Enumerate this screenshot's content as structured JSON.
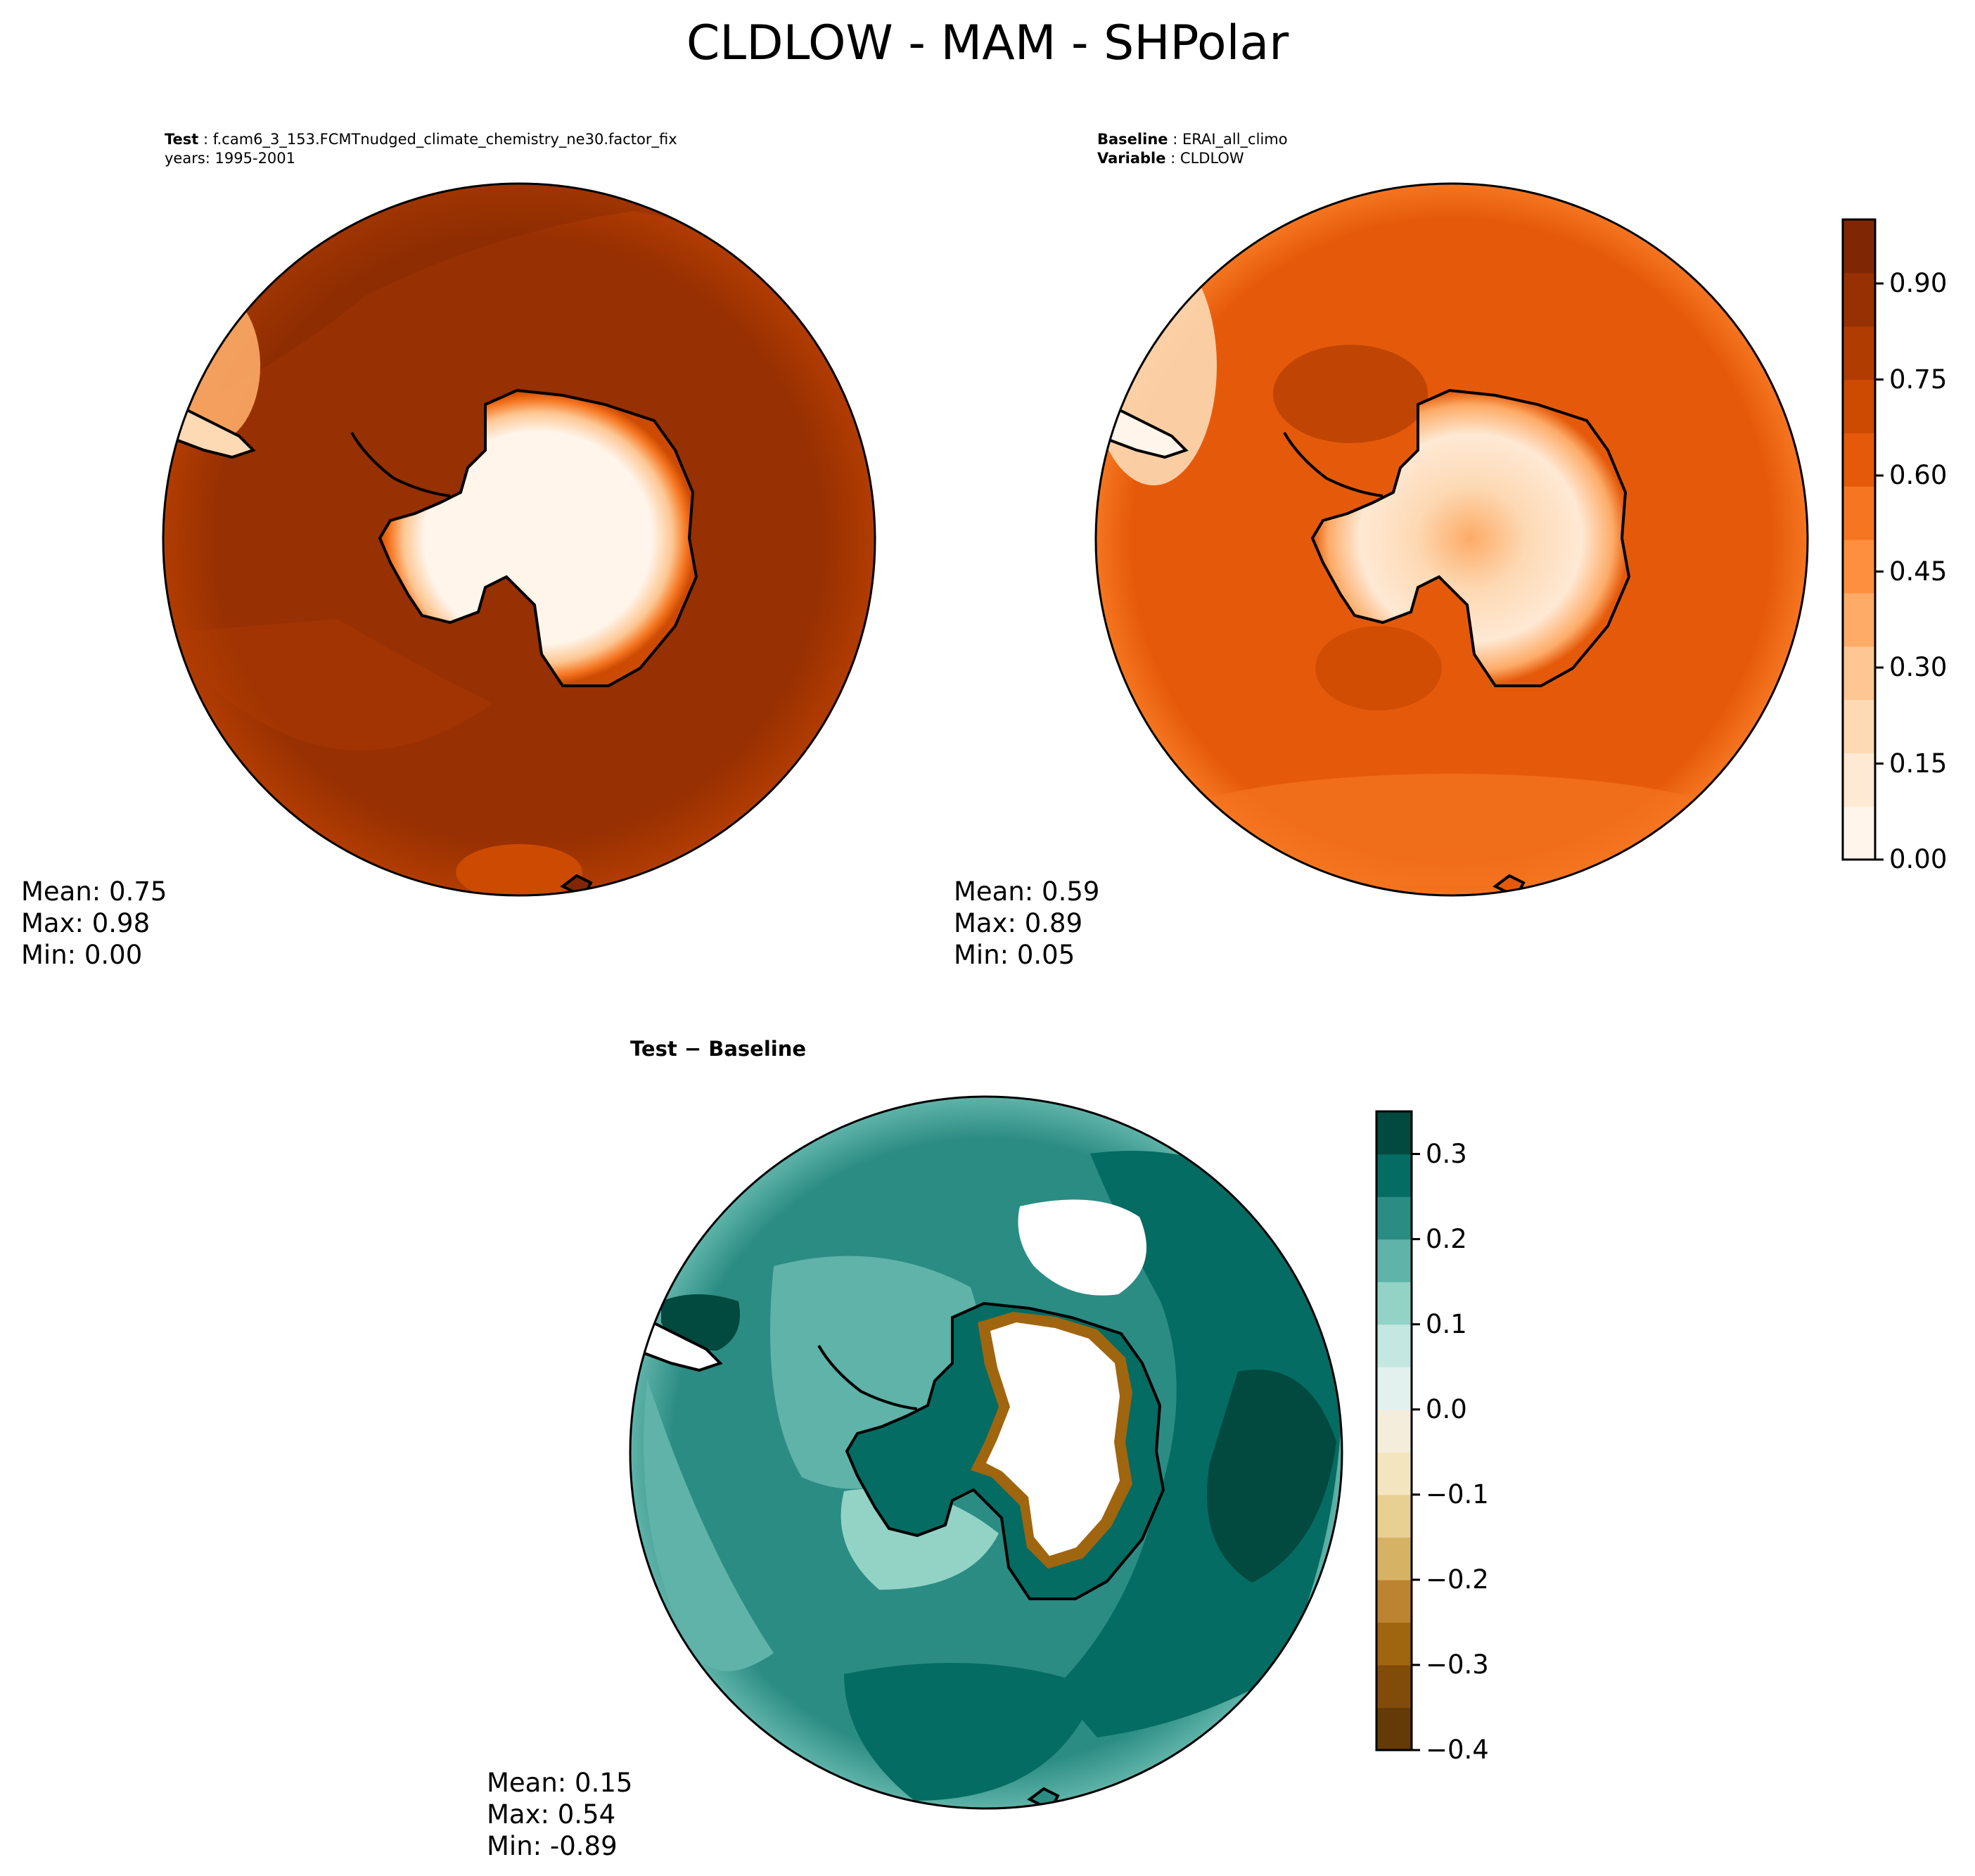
{
  "figure": {
    "title": "CLDLOW - MAM - SHPolar"
  },
  "panels": {
    "test": {
      "label": "Test",
      "case": "f.cam6_3_153.FCMTnudged_climate_chemistry_ne30.factor_fix",
      "years": "years: 1995-2001",
      "mean": "Mean:  0.75",
      "max": "Max:  0.98",
      "min": "Min:  0.00"
    },
    "baseline": {
      "label": "Baseline",
      "case": "ERAI_all_climo",
      "variable_label": "Variable",
      "variable": "CLDLOW",
      "mean": "Mean:  0.59",
      "max": "Max:  0.89",
      "min": "Min:  0.05"
    },
    "difference": {
      "title": "Test − Baseline",
      "mean": "Mean:  0.15",
      "max": "Max:  0.54",
      "min": "Min: -0.89"
    }
  },
  "colors": {
    "ocean_test": "#973002",
    "ocean_baseline": "#e55a0a",
    "land_low": "#fff5eb",
    "coastline": "#000000",
    "diff_ocean": "#2b8c84",
    "diff_high": "#02493f",
    "diff_low": "#6b3d07"
  },
  "chart_data": [
    {
      "type": "heatmap",
      "projection": "south polar stereographic",
      "title": "",
      "panel": "test",
      "stats": {
        "mean": 0.75,
        "max": 0.98,
        "min": 0.0
      }
    },
    {
      "type": "heatmap",
      "projection": "south polar stereographic",
      "title": "",
      "panel": "baseline",
      "stats": {
        "mean": 0.59,
        "max": 0.89,
        "min": 0.05
      },
      "colorbar": {
        "cmap": "Oranges",
        "range": [
          0.0,
          1.0
        ],
        "ticks": [
          "0.00",
          "0.15",
          "0.30",
          "0.45",
          "0.60",
          "0.75",
          "0.90"
        ],
        "tick_values": [
          0.0,
          0.15,
          0.3,
          0.45,
          0.6,
          0.75,
          0.9
        ],
        "colors": [
          "#fff5eb",
          "#fee9d4",
          "#fdd9b4",
          "#fdc692",
          "#fdab67",
          "#fd8f3e",
          "#f57520",
          "#e55a0a",
          "#cc4a02",
          "#b13c02",
          "#973002",
          "#7f2704"
        ]
      }
    },
    {
      "type": "heatmap",
      "projection": "south polar stereographic",
      "title": "",
      "panel": "difference",
      "stats": {
        "mean": 0.15,
        "max": 0.54,
        "min": -0.89
      },
      "colorbar": {
        "cmap": "BrBG",
        "range": [
          -0.4,
          0.35
        ],
        "ticks": [
          "−0.4",
          "−0.3",
          "−0.2",
          "−0.1",
          "0.0",
          "0.1",
          "0.2",
          "0.3"
        ],
        "tick_values": [
          -0.4,
          -0.3,
          -0.2,
          -0.1,
          0.0,
          0.1,
          0.2,
          0.3
        ],
        "colors": [
          "#643a06",
          "#814b09",
          "#a0650f",
          "#bc8430",
          "#d6b265",
          "#e8cf92",
          "#f3e6bf",
          "#f5eddc",
          "#e3f1ee",
          "#c4e8e1",
          "#93d3c6",
          "#5fb3a8",
          "#2b8c84",
          "#046c62",
          "#02493f"
        ]
      }
    }
  ]
}
